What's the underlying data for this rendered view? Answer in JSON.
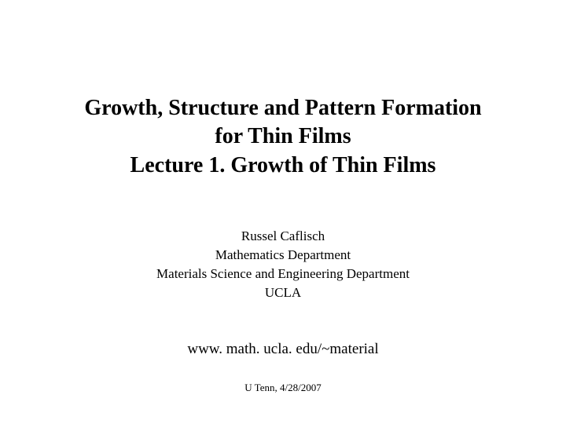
{
  "title": {
    "line1": "Growth, Structure and Pattern Formation",
    "line2": "for Thin Films",
    "line3": "Lecture 1. Growth of Thin Films"
  },
  "author": {
    "name": "Russel Caflisch",
    "dept1": "Mathematics Department",
    "dept2": "Materials Science and Engineering Department",
    "institution": "UCLA"
  },
  "url": "www. math. ucla. edu/~material",
  "footer": "U Tenn, 4/28/2007",
  "styles": {
    "background_color": "#ffffff",
    "text_color": "#000000",
    "title_fontsize": 28,
    "author_fontsize": 17,
    "url_fontsize": 19,
    "footer_fontsize": 13,
    "font_family": "Times New Roman"
  }
}
